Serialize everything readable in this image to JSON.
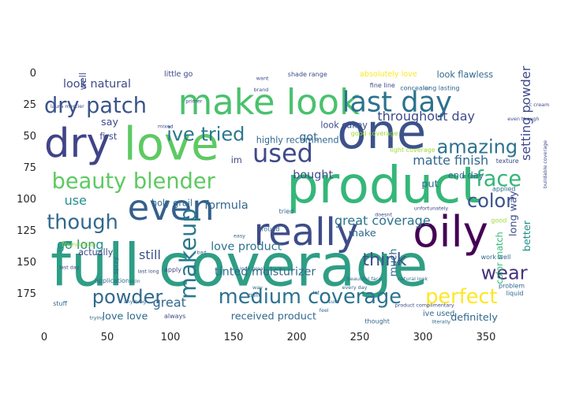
{
  "chart_data": {
    "type": "image",
    "title": "",
    "xlabel": "",
    "ylabel": "",
    "xlim": [
      0,
      400
    ],
    "ylim": [
      200,
      0
    ],
    "xticks": [
      0,
      50,
      100,
      150,
      200,
      250,
      300,
      350
    ],
    "yticks": [
      0,
      25,
      50,
      75,
      100,
      125,
      150,
      175
    ],
    "grid": false,
    "colormap": "viridis",
    "words": [
      {
        "text": "full coverage",
        "x": 5,
        "y": 169,
        "size": 46,
        "color": "#2e9e85"
      },
      {
        "text": "product",
        "x": 192,
        "y": 103,
        "size": 40,
        "color": "#35b779"
      },
      {
        "text": "one",
        "x": 232,
        "y": 60,
        "size": 38,
        "color": "#3b528b"
      },
      {
        "text": "love",
        "x": 63,
        "y": 69,
        "size": 36,
        "color": "#5ec962"
      },
      {
        "text": "dry",
        "x": 0,
        "y": 67,
        "size": 32,
        "color": "#414487"
      },
      {
        "text": "oily",
        "x": 292,
        "y": 138,
        "size": 34,
        "color": "#440154"
      },
      {
        "text": "make look",
        "x": 106,
        "y": 33,
        "size": 28,
        "color": "#4ac16d"
      },
      {
        "text": "really",
        "x": 166,
        "y": 137,
        "size": 30,
        "color": "#3e4c8a"
      },
      {
        "text": "even",
        "x": 66,
        "y": 117,
        "size": 28,
        "color": "#355f8d"
      },
      {
        "text": "last day",
        "x": 236,
        "y": 31,
        "size": 22,
        "color": "#2c728e"
      },
      {
        "text": "dry patch",
        "x": 0,
        "y": 32,
        "size": 17,
        "color": "#3a548c"
      },
      {
        "text": "beauty blender",
        "x": 6,
        "y": 92,
        "size": 17,
        "color": "#5ec962"
      },
      {
        "text": "used",
        "x": 165,
        "y": 71,
        "size": 20,
        "color": "#3e4a89"
      },
      {
        "text": "makeup",
        "x": 120,
        "y": 180,
        "size": 18,
        "color": "#2a788e",
        "rotate": -90
      },
      {
        "text": "medium coverage",
        "x": 138,
        "y": 183,
        "size": 16,
        "color": "#2c728e"
      },
      {
        "text": "ive tried",
        "x": 97,
        "y": 54,
        "size": 15,
        "color": "#2a788e"
      },
      {
        "text": "amazing",
        "x": 311,
        "y": 64,
        "size": 15,
        "color": "#2c728e"
      },
      {
        "text": "face",
        "x": 342,
        "y": 90,
        "size": 17,
        "color": "#35b779"
      },
      {
        "text": "color",
        "x": 335,
        "y": 107,
        "size": 15,
        "color": "#3b528b"
      },
      {
        "text": "though",
        "x": 2,
        "y": 124,
        "size": 16,
        "color": "#31688e"
      },
      {
        "text": "perfect",
        "x": 302,
        "y": 183,
        "size": 16,
        "color": "#fde725"
      },
      {
        "text": "powder",
        "x": 38,
        "y": 183,
        "size": 15,
        "color": "#31688e"
      },
      {
        "text": "wear",
        "x": 346,
        "y": 164,
        "size": 15,
        "color": "#46327e"
      },
      {
        "text": "think",
        "x": 252,
        "y": 153,
        "size": 14,
        "color": "#3b528b"
      },
      {
        "text": "throughout day",
        "x": 264,
        "y": 38,
        "size": 10,
        "color": "#3e4a89"
      },
      {
        "text": "matte finish",
        "x": 292,
        "y": 73,
        "size": 10,
        "color": "#31688e"
      },
      {
        "text": "setting powder",
        "x": 385,
        "y": 70,
        "size": 10,
        "color": "#3e4a89",
        "rotate": -90
      },
      {
        "text": "look natural",
        "x": 15,
        "y": 12,
        "size": 9,
        "color": "#3e4a89"
      },
      {
        "text": "great coverage",
        "x": 230,
        "y": 121,
        "size": 10,
        "color": "#2c728e"
      },
      {
        "text": "love product",
        "x": 132,
        "y": 141,
        "size": 9,
        "color": "#2c728e"
      },
      {
        "text": "tinted moisturizer",
        "x": 135,
        "y": 161,
        "size": 9,
        "color": "#31688e"
      },
      {
        "text": "received product",
        "x": 148,
        "y": 196,
        "size": 8,
        "color": "#31688e"
      },
      {
        "text": "love love",
        "x": 46,
        "y": 196,
        "size": 8,
        "color": "#31688e"
      },
      {
        "text": "go long",
        "x": 10,
        "y": 140,
        "size": 10,
        "color": "#21908d"
      },
      {
        "text": "still",
        "x": 75,
        "y": 148,
        "size": 10,
        "color": "#3b528b"
      },
      {
        "text": "great",
        "x": 86,
        "y": 186,
        "size": 10,
        "color": "#31688e"
      },
      {
        "text": "use",
        "x": 16,
        "y": 105,
        "size": 10,
        "color": "#21908d"
      },
      {
        "text": "bought",
        "x": 197,
        "y": 84,
        "size": 9,
        "color": "#3e4a89"
      },
      {
        "text": "got",
        "x": 202,
        "y": 54,
        "size": 9,
        "color": "#31688e"
      },
      {
        "text": "formula",
        "x": 127,
        "y": 108,
        "size": 9,
        "color": "#31688e"
      },
      {
        "text": "make",
        "x": 241,
        "y": 130,
        "size": 8,
        "color": "#31688e"
      },
      {
        "text": "put",
        "x": 299,
        "y": 91,
        "size": 8,
        "color": "#31688e"
      },
      {
        "text": "much",
        "x": 279,
        "y": 162,
        "size": 8,
        "color": "#31688e",
        "rotate": -90
      },
      {
        "text": "long way",
        "x": 374,
        "y": 130,
        "size": 8,
        "color": "#3e4a89",
        "rotate": -90
      },
      {
        "text": "better",
        "x": 385,
        "y": 142,
        "size": 8,
        "color": "#21908d",
        "rotate": -90
      },
      {
        "text": "color match",
        "x": 363,
        "y": 168,
        "size": 7,
        "color": "#35b779",
        "rotate": -90
      },
      {
        "text": "definitely",
        "x": 322,
        "y": 197,
        "size": 8,
        "color": "#31688e"
      },
      {
        "text": "say",
        "x": 45,
        "y": 42,
        "size": 8,
        "color": "#3e4a89"
      },
      {
        "text": "first",
        "x": 44,
        "y": 53,
        "size": 7,
        "color": "#3e4a89"
      },
      {
        "text": "im",
        "x": 148,
        "y": 72,
        "size": 7,
        "color": "#3e4a89"
      },
      {
        "text": "actually",
        "x": 27,
        "y": 145,
        "size": 7,
        "color": "#3e4a89"
      },
      {
        "text": "holy grail",
        "x": 85,
        "y": 106,
        "size": 7,
        "color": "#31688e"
      },
      {
        "text": "highly recommend",
        "x": 168,
        "y": 56,
        "size": 7,
        "color": "#31688e"
      },
      {
        "text": "look cakey",
        "x": 219,
        "y": 44,
        "size": 7,
        "color": "#3e4a89"
      },
      {
        "text": "look flawless",
        "x": 311,
        "y": 4,
        "size": 7,
        "color": "#31688e"
      },
      {
        "text": "end day",
        "x": 320,
        "y": 84,
        "size": 7,
        "color": "#31688e"
      },
      {
        "text": "little go",
        "x": 95,
        "y": 3,
        "size": 6,
        "color": "#3e4a89"
      },
      {
        "text": "absolutely love",
        "x": 250,
        "y": 3,
        "size": 6,
        "color": "#fde725"
      },
      {
        "text": "light coverage",
        "x": 274,
        "y": 63,
        "size": 5,
        "color": "#a0da39"
      },
      {
        "text": "good coverage",
        "x": 243,
        "y": 50,
        "size": 5,
        "color": "#a0da39"
      },
      {
        "text": "foundation",
        "x": 14,
        "y": 138,
        "size": 5,
        "color": "#a0da39"
      },
      {
        "text": "texture",
        "x": 358,
        "y": 72,
        "size": 5,
        "color": "#3e4a89"
      },
      {
        "text": "applied",
        "x": 355,
        "y": 94,
        "size": 5,
        "color": "#31688e"
      },
      {
        "text": "good",
        "x": 354,
        "y": 119,
        "size": 5,
        "color": "#a0da39"
      },
      {
        "text": "shade range",
        "x": 193,
        "y": 3,
        "size": 5,
        "color": "#3e4a89"
      },
      {
        "text": "fine line",
        "x": 258,
        "y": 12,
        "size": 5,
        "color": "#3e4a89"
      },
      {
        "text": "long lasting",
        "x": 300,
        "y": 14,
        "size": 5,
        "color": "#31688e"
      },
      {
        "text": "concealer",
        "x": 282,
        "y": 14,
        "size": 5,
        "color": "#31688e"
      },
      {
        "text": "round",
        "x": 172,
        "y": 126,
        "size": 5,
        "color": "#31688e"
      },
      {
        "text": "tried",
        "x": 186,
        "y": 112,
        "size": 5,
        "color": "#31688e"
      },
      {
        "text": "work well",
        "x": 346,
        "y": 148,
        "size": 5,
        "color": "#31688e"
      },
      {
        "text": "liquid",
        "x": 366,
        "y": 177,
        "size": 5,
        "color": "#31688e"
      },
      {
        "text": "problem",
        "x": 360,
        "y": 171,
        "size": 5,
        "color": "#31688e"
      },
      {
        "text": "ive used",
        "x": 300,
        "y": 193,
        "size": 6,
        "color": "#31688e"
      },
      {
        "text": "thought",
        "x": 254,
        "y": 199,
        "size": 5,
        "color": "#31688e"
      },
      {
        "text": "application",
        "x": 40,
        "y": 167,
        "size": 5,
        "color": "#31688e"
      },
      {
        "text": "apply",
        "x": 95,
        "y": 158,
        "size": 5,
        "color": "#3e4a89"
      },
      {
        "text": "always",
        "x": 95,
        "y": 195,
        "size": 5,
        "color": "#3e4a89"
      },
      {
        "text": "stuff",
        "x": 7,
        "y": 185,
        "size": 5,
        "color": "#31688e"
      },
      {
        "text": "spray",
        "x": 58,
        "y": 160,
        "size": 5,
        "color": "#31688e",
        "rotate": -90
      },
      {
        "text": "well",
        "x": 33,
        "y": 14,
        "size": 7,
        "color": "#3e4a89",
        "rotate": -90
      },
      {
        "text": "brand",
        "x": 166,
        "y": 15,
        "size": 4,
        "color": "#3e4a89"
      },
      {
        "text": "want",
        "x": 168,
        "y": 6,
        "size": 4,
        "color": "#3e4a89"
      },
      {
        "text": "last long",
        "x": 74,
        "y": 159,
        "size": 4,
        "color": "#3e4a89"
      },
      {
        "text": "look great",
        "x": 155,
        "y": 157,
        "size": 4,
        "color": "#31688e"
      },
      {
        "text": "beautiful face",
        "x": 240,
        "y": 165,
        "size": 4,
        "color": "#31688e"
      },
      {
        "text": "natural look",
        "x": 280,
        "y": 165,
        "size": 4,
        "color": "#31688e"
      },
      {
        "text": "literally",
        "x": 307,
        "y": 199,
        "size": 4,
        "color": "#31688e"
      },
      {
        "text": "every day",
        "x": 236,
        "y": 172,
        "size": 4,
        "color": "#31688e"
      },
      {
        "text": "feel",
        "x": 218,
        "y": 190,
        "size": 4,
        "color": "#31688e"
      },
      {
        "text": "sure",
        "x": 225,
        "y": 183,
        "size": 4,
        "color": "#31688e"
      },
      {
        "text": "lot",
        "x": 213,
        "y": 176,
        "size": 4,
        "color": "#31688e"
      },
      {
        "text": "way",
        "x": 165,
        "y": 172,
        "size": 4,
        "color": "#31688e"
      },
      {
        "text": "thing",
        "x": 162,
        "y": 178,
        "size": 4,
        "color": "#31688e"
      },
      {
        "text": "skin",
        "x": 68,
        "y": 167,
        "size": 4,
        "color": "#31688e"
      },
      {
        "text": "bad",
        "x": 121,
        "y": 144,
        "size": 4,
        "color": "#31688e"
      },
      {
        "text": "easy",
        "x": 150,
        "y": 131,
        "size": 4,
        "color": "#31688e"
      },
      {
        "text": "trying",
        "x": 36,
        "y": 196,
        "size": 4,
        "color": "#31688e"
      },
      {
        "text": "anything",
        "x": 63,
        "y": 183,
        "size": 4,
        "color": "#31688e"
      },
      {
        "text": "last day",
        "x": 12,
        "y": 156,
        "size": 4,
        "color": "#3e4a89"
      },
      {
        "text": "laura mercier",
        "x": 5,
        "y": 28,
        "size": 4,
        "color": "#3e4a89"
      },
      {
        "text": "primer",
        "x": 112,
        "y": 24,
        "size": 4,
        "color": "#3e4a89"
      },
      {
        "text": "mixed",
        "x": 90,
        "y": 44,
        "size": 4,
        "color": "#3e4a89"
      },
      {
        "text": "even though",
        "x": 367,
        "y": 38,
        "size": 4,
        "color": "#3e4a89"
      },
      {
        "text": "cc cream",
        "x": 382,
        "y": 27,
        "size": 4,
        "color": "#3e4a89"
      },
      {
        "text": "doesnt",
        "x": 262,
        "y": 114,
        "size": 4,
        "color": "#3e4a89"
      },
      {
        "text": "unfortunately",
        "x": 293,
        "y": 109,
        "size": 4,
        "color": "#3e4a89"
      },
      {
        "text": "buildable coverage",
        "x": 398,
        "y": 92,
        "size": 4,
        "color": "#3e4a89",
        "rotate": -90
      },
      {
        "text": "product complimentary",
        "x": 278,
        "y": 186,
        "size": 4,
        "color": "#3e4a89"
      }
    ]
  }
}
